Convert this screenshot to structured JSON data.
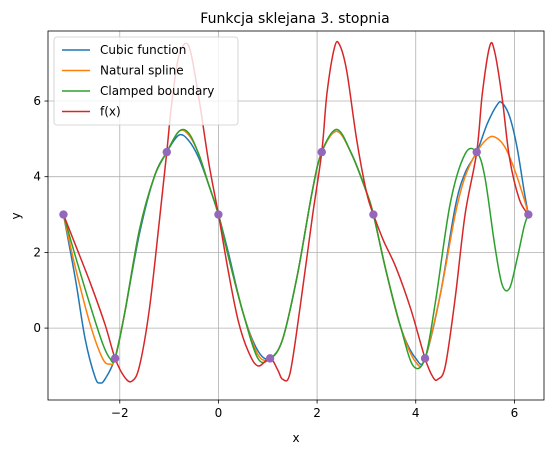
{
  "chart_data": {
    "type": "line",
    "title": "Funkcja sklejana 3. stopnia",
    "xlabel": "x",
    "ylabel": "y",
    "xlim": [
      -3.455,
      6.6
    ],
    "ylim": [
      -1.9,
      7.85
    ],
    "xticks": [
      -2,
      0,
      2,
      4,
      6
    ],
    "xtick_labels": [
      "−2",
      "0",
      "2",
      "4",
      "6"
    ],
    "yticks": [
      0,
      2,
      4,
      6
    ],
    "ytick_labels": [
      "0",
      "2",
      "4",
      "6"
    ],
    "grid": true,
    "legend": "top-left",
    "series": [
      {
        "name": "Cubic function",
        "color": "#1f77b4",
        "x": [
          -3.1416,
          -2.9,
          -2.7,
          -2.5,
          -2.4,
          -2.3,
          -2.1,
          -1.9,
          -1.6,
          -1.3,
          -1.0472,
          -0.8,
          -0.6,
          -0.4,
          -0.2,
          0,
          0.2,
          0.5,
          0.8,
          1.0472,
          1.3,
          1.6,
          1.9,
          2.0944,
          2.4,
          2.7,
          3.0,
          3.1416,
          3.4,
          3.7,
          4.0,
          4.1888,
          4.5,
          4.8,
          5.0,
          5.236,
          5.45,
          5.65,
          5.75,
          5.9,
          6.05,
          6.2,
          6.2832
        ],
        "y": [
          3.0,
          1.3,
          -0.3,
          -1.3,
          -1.45,
          -1.35,
          -0.8,
          0.4,
          2.5,
          4.0,
          4.65,
          5.1,
          4.95,
          4.5,
          3.8,
          3.0,
          2.0,
          0.4,
          -0.6,
          -0.8,
          -0.3,
          1.4,
          3.6,
          4.65,
          5.2,
          4.6,
          3.6,
          3.0,
          1.5,
          0.0,
          -0.8,
          -0.8,
          0.9,
          3.2,
          4.1,
          4.65,
          5.4,
          5.9,
          5.95,
          5.6,
          4.8,
          3.6,
          3.0
        ]
      },
      {
        "name": "Natural spline",
        "color": "#ff7f0e",
        "x": [
          -3.1416,
          -2.9,
          -2.6,
          -2.35,
          -2.2,
          -2.0944,
          -1.9,
          -1.6,
          -1.3,
          -1.0472,
          -0.8,
          -0.6,
          -0.4,
          -0.2,
          0,
          0.2,
          0.5,
          0.8,
          1.0472,
          1.3,
          1.6,
          1.9,
          2.0944,
          2.4,
          2.7,
          3.0,
          3.1416,
          3.4,
          3.7,
          4.0,
          4.1888,
          4.5,
          4.8,
          5.0,
          5.236,
          5.45,
          5.6,
          5.8,
          6.0,
          6.2,
          6.2832
        ],
        "y": [
          3.0,
          1.6,
          0.1,
          -0.8,
          -0.95,
          -0.8,
          0.4,
          2.6,
          4.0,
          4.65,
          5.2,
          5.1,
          4.6,
          3.8,
          3.0,
          1.9,
          0.4,
          -0.7,
          -0.8,
          -0.3,
          1.4,
          3.6,
          4.65,
          5.2,
          4.6,
          3.6,
          3.0,
          1.5,
          0.0,
          -0.9,
          -0.8,
          0.9,
          3.0,
          4.0,
          4.65,
          5.0,
          5.05,
          4.8,
          4.2,
          3.4,
          3.0
        ]
      },
      {
        "name": "Clamped boundary",
        "color": "#2ca02c",
        "x": [
          -3.1416,
          -2.9,
          -2.6,
          -2.35,
          -2.2,
          -2.0944,
          -1.9,
          -1.6,
          -1.3,
          -1.0472,
          -0.8,
          -0.6,
          -0.4,
          -0.2,
          0,
          0.2,
          0.5,
          0.8,
          1.0472,
          1.3,
          1.6,
          1.9,
          2.0944,
          2.4,
          2.7,
          3.0,
          3.1416,
          3.4,
          3.7,
          3.95,
          4.1888,
          4.4,
          4.7,
          5.0,
          5.236,
          5.4,
          5.6,
          5.75,
          5.9,
          6.05,
          6.2,
          6.2832
        ],
        "y": [
          3.0,
          1.9,
          0.6,
          -0.4,
          -0.8,
          -0.8,
          0.4,
          2.6,
          4.0,
          4.65,
          5.2,
          5.15,
          4.6,
          3.8,
          3.0,
          1.9,
          0.4,
          -0.8,
          -0.8,
          -0.3,
          1.4,
          3.6,
          4.65,
          5.25,
          4.6,
          3.6,
          3.0,
          1.5,
          0.0,
          -1.0,
          -0.8,
          0.7,
          3.3,
          4.6,
          4.65,
          4.0,
          2.2,
          1.15,
          1.05,
          1.8,
          2.7,
          3.0
        ]
      },
      {
        "name": "f(x)",
        "color": "#d62728",
        "x": [
          -3.1416,
          -2.9,
          -2.6,
          -2.3,
          -2.0944,
          -1.9,
          -1.75,
          -1.6,
          -1.4,
          -1.2,
          -1.0472,
          -0.95,
          -0.8,
          -0.6,
          -0.4,
          -0.2,
          0,
          0.2,
          0.4,
          0.6,
          0.8,
          1.0472,
          1.2,
          1.3,
          1.45,
          1.65,
          1.9,
          2.0944,
          2.2,
          2.35,
          2.45,
          2.6,
          2.8,
          3.0,
          3.1416,
          3.35,
          3.6,
          3.9,
          4.1888,
          4.35,
          4.45,
          4.6,
          4.8,
          5.0,
          5.236,
          5.35,
          5.5,
          5.6,
          5.75,
          5.9,
          6.1,
          6.2832
        ],
        "y": [
          3.0,
          2.2,
          1.2,
          0.1,
          -0.8,
          -1.3,
          -1.4,
          -1.0,
          0.5,
          2.8,
          4.65,
          5.9,
          7.2,
          7.45,
          6.1,
          4.4,
          3.0,
          1.5,
          0.2,
          -0.6,
          -1.0,
          -0.8,
          -1.1,
          -1.35,
          -1.2,
          0.5,
          2.9,
          4.65,
          6.2,
          7.4,
          7.5,
          6.8,
          5.0,
          3.6,
          3.0,
          2.3,
          1.6,
          0.5,
          -0.8,
          -1.3,
          -1.35,
          -1.0,
          0.8,
          3.0,
          4.65,
          6.2,
          7.45,
          7.3,
          6.1,
          4.5,
          3.4,
          3.0
        ]
      }
    ],
    "points": {
      "color": "#9467bd",
      "x": [
        -3.1416,
        -2.0944,
        -1.0472,
        0,
        1.0472,
        2.0944,
        3.1416,
        4.1888,
        5.236,
        6.2832
      ],
      "y": [
        3.0,
        -0.8,
        4.65,
        3.0,
        -0.8,
        4.65,
        3.0,
        -0.8,
        4.65,
        3.0
      ]
    }
  }
}
